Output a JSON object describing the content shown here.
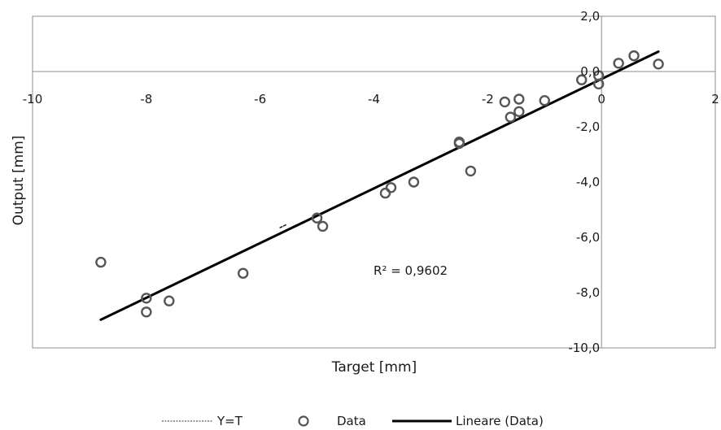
{
  "chart_data": {
    "type": "scatter",
    "xlabel": "Target [mm]",
    "ylabel": "Output [mm]",
    "xlim": [
      -10,
      2
    ],
    "ylim": [
      -10,
      2
    ],
    "x_ticks": [
      -10,
      -8,
      -6,
      -4,
      -2,
      0,
      2
    ],
    "y_ticks": [
      2,
      0,
      -2,
      -4,
      -6,
      -8,
      -10
    ],
    "x_tick_labels": [
      "-10",
      "-8",
      "-6",
      "-4",
      "-2",
      "0",
      "2"
    ],
    "y_tick_labels": [
      "2,0",
      "0,0",
      "-2,0",
      "-4,0",
      "-6,0",
      "-8,0",
      "-10,0"
    ],
    "grid": false,
    "legend_position": "bottom",
    "annotation": "R² = 0,9602",
    "series": [
      {
        "name": "Y=T",
        "type": "line",
        "style": "dashed",
        "color": "#1a1a1a",
        "x": [
          -5.65,
          -5.55
        ],
        "y": [
          -5.65,
          -5.55
        ]
      },
      {
        "name": "Data",
        "type": "scatter",
        "marker": "circle",
        "color": "#555555",
        "x": [
          -8.8,
          -8.0,
          -8.0,
          -7.6,
          -6.3,
          -5.0,
          -4.9,
          -3.8,
          -3.7,
          -3.3,
          -2.5,
          -2.5,
          -2.3,
          -1.7,
          -1.6,
          -1.45,
          -1.45,
          -1.0,
          -0.35,
          -0.05,
          -0.05,
          0.3,
          0.57,
          1.0
        ],
        "y": [
          -6.9,
          -8.2,
          -8.7,
          -8.3,
          -7.3,
          -5.3,
          -5.6,
          -4.4,
          -4.2,
          -4.0,
          -2.55,
          -2.6,
          -3.6,
          -1.1,
          -1.65,
          -1.0,
          -1.45,
          -1.05,
          -0.3,
          -0.15,
          -0.45,
          0.3,
          0.57,
          0.27
        ]
      },
      {
        "name": "Lineare (Data)",
        "type": "line",
        "style": "solid",
        "color": "#000000",
        "x": [
          -8.8,
          1.0
        ],
        "y": [
          -8.98,
          0.72
        ]
      }
    ]
  }
}
